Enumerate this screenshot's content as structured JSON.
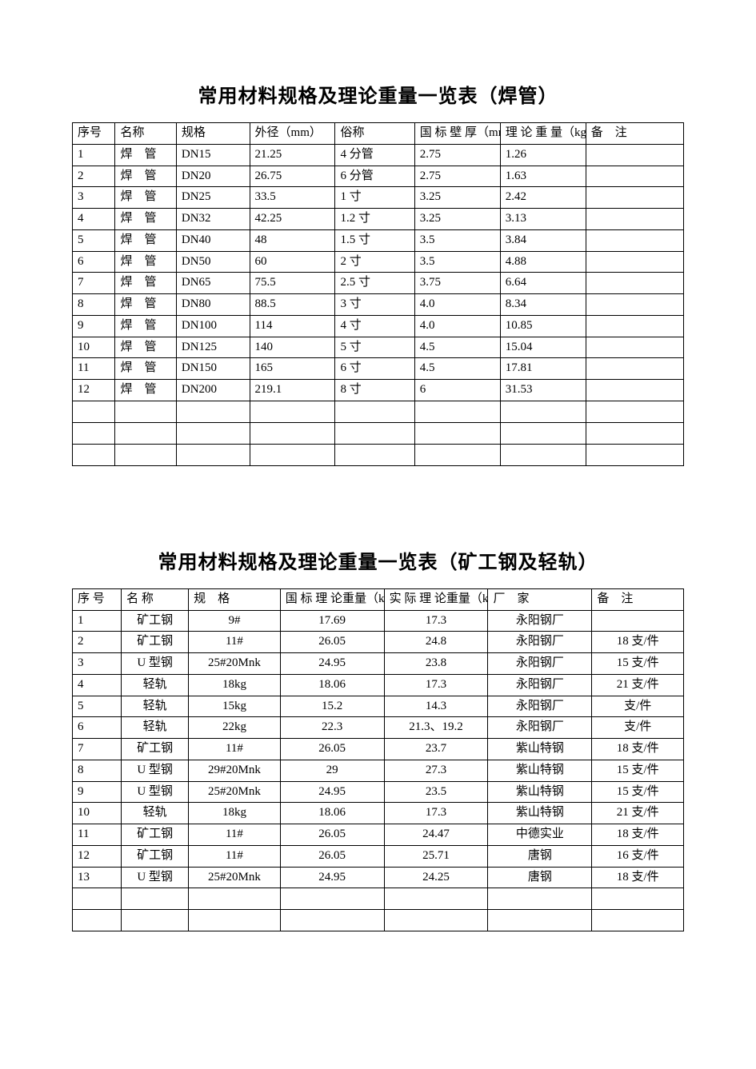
{
  "page": {
    "background_color": "#ffffff",
    "text_color": "#000000",
    "border_color": "#000000",
    "title_fontsize": 24,
    "body_fontsize": 15,
    "title_font": "SimHei",
    "body_font": "SimSun"
  },
  "table1": {
    "type": "table",
    "title": "常用材料规格及理论重量一览表（焊管）",
    "columns": [
      {
        "key": "idx",
        "label": "序号",
        "width": "7%",
        "align": "left"
      },
      {
        "key": "name",
        "label": "名称",
        "width": "10%",
        "align": "left"
      },
      {
        "key": "spec",
        "label": "规格",
        "width": "12%",
        "align": "left"
      },
      {
        "key": "od",
        "label": "外径（mm）",
        "width": "14%",
        "align": "left"
      },
      {
        "key": "nick",
        "label": "俗称",
        "width": "13%",
        "align": "left"
      },
      {
        "key": "thick",
        "label": "国 标 壁 厚（mm）",
        "width": "14%",
        "align": "left"
      },
      {
        "key": "wt",
        "label": "理 论 重 量（kg/m）",
        "width": "14%",
        "align": "left"
      },
      {
        "key": "note",
        "label": "备　注",
        "width": "16%",
        "align": "center"
      }
    ],
    "rows": [
      {
        "idx": "1",
        "name": "焊　管",
        "spec": "DN15",
        "od": "21.25",
        "nick": "4 分管",
        "thick": "2.75",
        "wt": "1.26",
        "note": ""
      },
      {
        "idx": "2",
        "name": "焊　管",
        "spec": "DN20",
        "od": "26.75",
        "nick": "6 分管",
        "thick": "2.75",
        "wt": "1.63",
        "note": ""
      },
      {
        "idx": "3",
        "name": "焊　管",
        "spec": "DN25",
        "od": "33.5",
        "nick": "1 寸",
        "thick": "3.25",
        "wt": "2.42",
        "note": ""
      },
      {
        "idx": "4",
        "name": "焊　管",
        "spec": "DN32",
        "od": "42.25",
        "nick": "1.2 寸",
        "thick": "3.25",
        "wt": "3.13",
        "note": ""
      },
      {
        "idx": "5",
        "name": "焊　管",
        "spec": "DN40",
        "od": "48",
        "nick": "1.5 寸",
        "thick": "3.5",
        "wt": "3.84",
        "note": ""
      },
      {
        "idx": "6",
        "name": "焊　管",
        "spec": "DN50",
        "od": "60",
        "nick": "2 寸",
        "thick": "3.5",
        "wt": "4.88",
        "note": ""
      },
      {
        "idx": "7",
        "name": "焊　管",
        "spec": "DN65",
        "od": "75.5",
        "nick": "2.5 寸",
        "thick": "3.75",
        "wt": "6.64",
        "note": ""
      },
      {
        "idx": "8",
        "name": "焊　管",
        "spec": "DN80",
        "od": "88.5",
        "nick": "3 寸",
        "thick": "4.0",
        "wt": "8.34",
        "note": ""
      },
      {
        "idx": "9",
        "name": "焊　管",
        "spec": "DN100",
        "od": "114",
        "nick": "4 寸",
        "thick": "4.0",
        "wt": "10.85",
        "note": ""
      },
      {
        "idx": "10",
        "name": "焊　管",
        "spec": "DN125",
        "od": "140",
        "nick": "5 寸",
        "thick": "4.5",
        "wt": "15.04",
        "note": ""
      },
      {
        "idx": "11",
        "name": "焊　管",
        "spec": "DN150",
        "od": "165",
        "nick": "6 寸",
        "thick": "4.5",
        "wt": "17.81",
        "note": ""
      },
      {
        "idx": "12",
        "name": "焊　管",
        "spec": "DN200",
        "od": "219.1",
        "nick": "8 寸",
        "thick": "6",
        "wt": "31.53",
        "note": ""
      }
    ],
    "empty_rows": 3
  },
  "table2": {
    "type": "table",
    "title": "常用材料规格及理论重量一览表（矿工钢及轻轨）",
    "columns": [
      {
        "key": "idx",
        "label": "序  号",
        "width": "8%",
        "align": "left"
      },
      {
        "key": "name",
        "label": "名  称",
        "width": "11%",
        "align": "center"
      },
      {
        "key": "spec",
        "label": "规　格",
        "width": "15%",
        "align": "center"
      },
      {
        "key": "gbwt",
        "label": "国 标 理 论重量（kg/m）",
        "width": "17%",
        "align": "center"
      },
      {
        "key": "actwt",
        "label": "实 际 理 论重量（kg/m）",
        "width": "17%",
        "align": "center"
      },
      {
        "key": "maker",
        "label": "厂　家",
        "width": "17%",
        "align": "center"
      },
      {
        "key": "note",
        "label": "备　注",
        "width": "15%",
        "align": "center"
      }
    ],
    "rows": [
      {
        "idx": "1",
        "name": "矿工钢",
        "spec": "9#",
        "gbwt": "17.69",
        "actwt": "17.3",
        "maker": "永阳钢厂",
        "note": ""
      },
      {
        "idx": "2",
        "name": "矿工钢",
        "spec": "11#",
        "gbwt": "26.05",
        "actwt": "24.8",
        "maker": "永阳钢厂",
        "note": "18 支/件"
      },
      {
        "idx": "3",
        "name": "U 型钢",
        "spec": "25#20Mnk",
        "gbwt": "24.95",
        "actwt": "23.8",
        "maker": "永阳钢厂",
        "note": "15 支/件"
      },
      {
        "idx": "4",
        "name": "轻轨",
        "spec": "18kg",
        "gbwt": "18.06",
        "actwt": "17.3",
        "maker": "永阳钢厂",
        "note": "21 支/件"
      },
      {
        "idx": "5",
        "name": "轻轨",
        "spec": "15kg",
        "gbwt": "15.2",
        "actwt": "14.3",
        "maker": "永阳钢厂",
        "note": "支/件"
      },
      {
        "idx": "6",
        "name": "轻轨",
        "spec": "22kg",
        "gbwt": "22.3",
        "actwt": "21.3、19.2",
        "maker": "永阳钢厂",
        "note": "支/件"
      },
      {
        "idx": "7",
        "name": "矿工钢",
        "spec": "11#",
        "gbwt": "26.05",
        "actwt": "23.7",
        "maker": "紫山特钢",
        "note": "18 支/件"
      },
      {
        "idx": "8",
        "name": "U 型钢",
        "spec": "29#20Mnk",
        "gbwt": "29",
        "actwt": "27.3",
        "maker": "紫山特钢",
        "note": "15 支/件"
      },
      {
        "idx": "9",
        "name": "U 型钢",
        "spec": "25#20Mnk",
        "gbwt": "24.95",
        "actwt": "23.5",
        "maker": "紫山特钢",
        "note": "15 支/件"
      },
      {
        "idx": "10",
        "name": "轻轨",
        "spec": "18kg",
        "gbwt": "18.06",
        "actwt": "17.3",
        "maker": "紫山特钢",
        "note": "21 支/件"
      },
      {
        "idx": "11",
        "name": "矿工钢",
        "spec": "11#",
        "gbwt": "26.05",
        "actwt": "24.47",
        "maker": "中德实业",
        "note": "18 支/件"
      },
      {
        "idx": "12",
        "name": "矿工钢",
        "spec": "11#",
        "gbwt": "26.05",
        "actwt": "25.71",
        "maker": "唐钢",
        "note": "16 支/件"
      },
      {
        "idx": "13",
        "name": "U 型钢",
        "spec": "25#20Mnk",
        "gbwt": "24.95",
        "actwt": "24.25",
        "maker": "唐钢",
        "note": "18 支/件"
      }
    ],
    "empty_rows": 2
  }
}
